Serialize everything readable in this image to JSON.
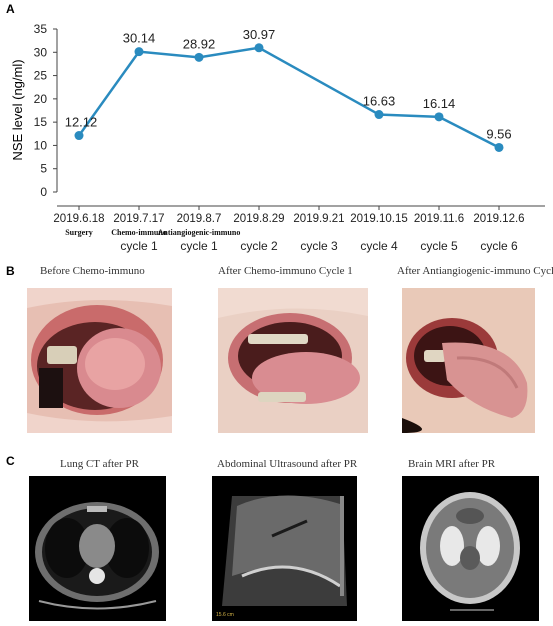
{
  "panels": {
    "a": "A",
    "b": "B",
    "c": "C"
  },
  "chart_data": {
    "type": "line",
    "ylabel": "NSE level (ng/ml)",
    "xlabel": "",
    "ylim": [
      0,
      35
    ],
    "yticks": [
      0,
      5,
      10,
      15,
      20,
      25,
      30,
      35
    ],
    "categories": [
      "2019.6.18",
      "2019.7.17",
      "2019.8.7",
      "2019.8.29",
      "2019.9.21",
      "2019.10.15",
      "2019.11.6",
      "2019.12.6"
    ],
    "sublabels_bold": [
      "Surgery",
      "Chemo-immuno",
      "",
      "",
      "",
      "",
      "",
      ""
    ],
    "sublabels_bold2": [
      "",
      "",
      "Antiangiogenic-immuno",
      "",
      "",
      "",
      "",
      ""
    ],
    "cycles": [
      "",
      "cycle 1",
      "cycle 1",
      "cycle 2",
      "cycle 3",
      "cycle 4",
      "cycle 5",
      "cycle 6"
    ],
    "points": [
      {
        "x": "2019.6.18",
        "y": 12.12
      },
      {
        "x": "2019.7.17",
        "y": 30.14
      },
      {
        "x": "2019.8.7",
        "y": 28.92
      },
      {
        "x": "2019.8.29",
        "y": 30.97
      },
      {
        "x": "2019.10.15",
        "y": 16.63
      },
      {
        "x": "2019.11.6",
        "y": 16.14
      },
      {
        "x": "2019.12.6",
        "y": 9.56
      }
    ],
    "data_labels": [
      "12.12",
      "30.14",
      "28.92",
      "30.97",
      "16.63",
      "16.14",
      "9.56"
    ],
    "line_color": "#2a8bbf",
    "grid": false
  },
  "photos": {
    "tongue1": "Before Chemo-immuno",
    "tongue2": "After Chemo-immuno Cycle 1",
    "tongue3": "After Antiangiogenic-immuno Cycl",
    "scan1": "Lung CT after PR",
    "scan2": "Abdominal Ultrasound  after PR",
    "scan3": "Brain MRI after PR"
  }
}
